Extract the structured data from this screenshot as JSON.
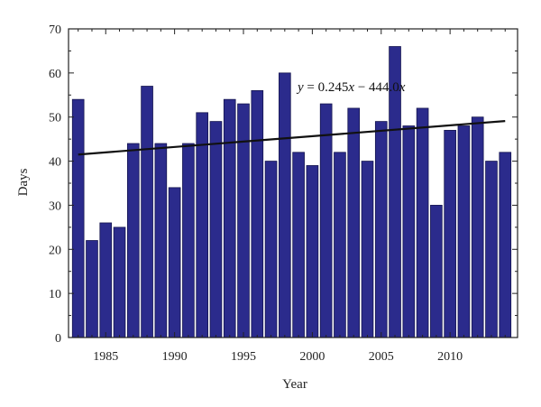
{
  "chart_data": {
    "type": "bar",
    "xlabel": "Year",
    "ylabel": "Days",
    "x": [
      1983,
      1984,
      1985,
      1986,
      1987,
      1988,
      1989,
      1990,
      1991,
      1992,
      1993,
      1994,
      1995,
      1996,
      1997,
      1998,
      1999,
      2000,
      2001,
      2002,
      2003,
      2004,
      2005,
      2006,
      2007,
      2008,
      2009,
      2010,
      2011,
      2012,
      2013,
      2014
    ],
    "values": [
      54,
      22,
      26,
      25,
      44,
      57,
      44,
      34,
      44,
      51,
      49,
      54,
      53,
      56,
      40,
      60,
      42,
      39,
      53,
      42,
      52,
      40,
      49,
      66,
      48,
      52,
      30,
      47,
      48,
      50,
      40,
      42
    ],
    "xlim": [
      1982.3,
      2014.9
    ],
    "ylim": [
      0,
      70
    ],
    "xticks": [
      1985,
      1990,
      1995,
      2000,
      2005,
      2010
    ],
    "yticks": [
      0,
      10,
      20,
      30,
      40,
      50,
      60,
      70
    ],
    "trendline": {
      "x_start": 1983,
      "x_end": 2014,
      "y_start": 41.5,
      "y_end": 49.1
    },
    "annotation": {
      "var_y": "y",
      "eq": " = 0.245",
      "var_x1": "x",
      "minus": " − 444.0",
      "var_x2": "x"
    },
    "bar_color": "#2b2b8c",
    "grid": false
  }
}
